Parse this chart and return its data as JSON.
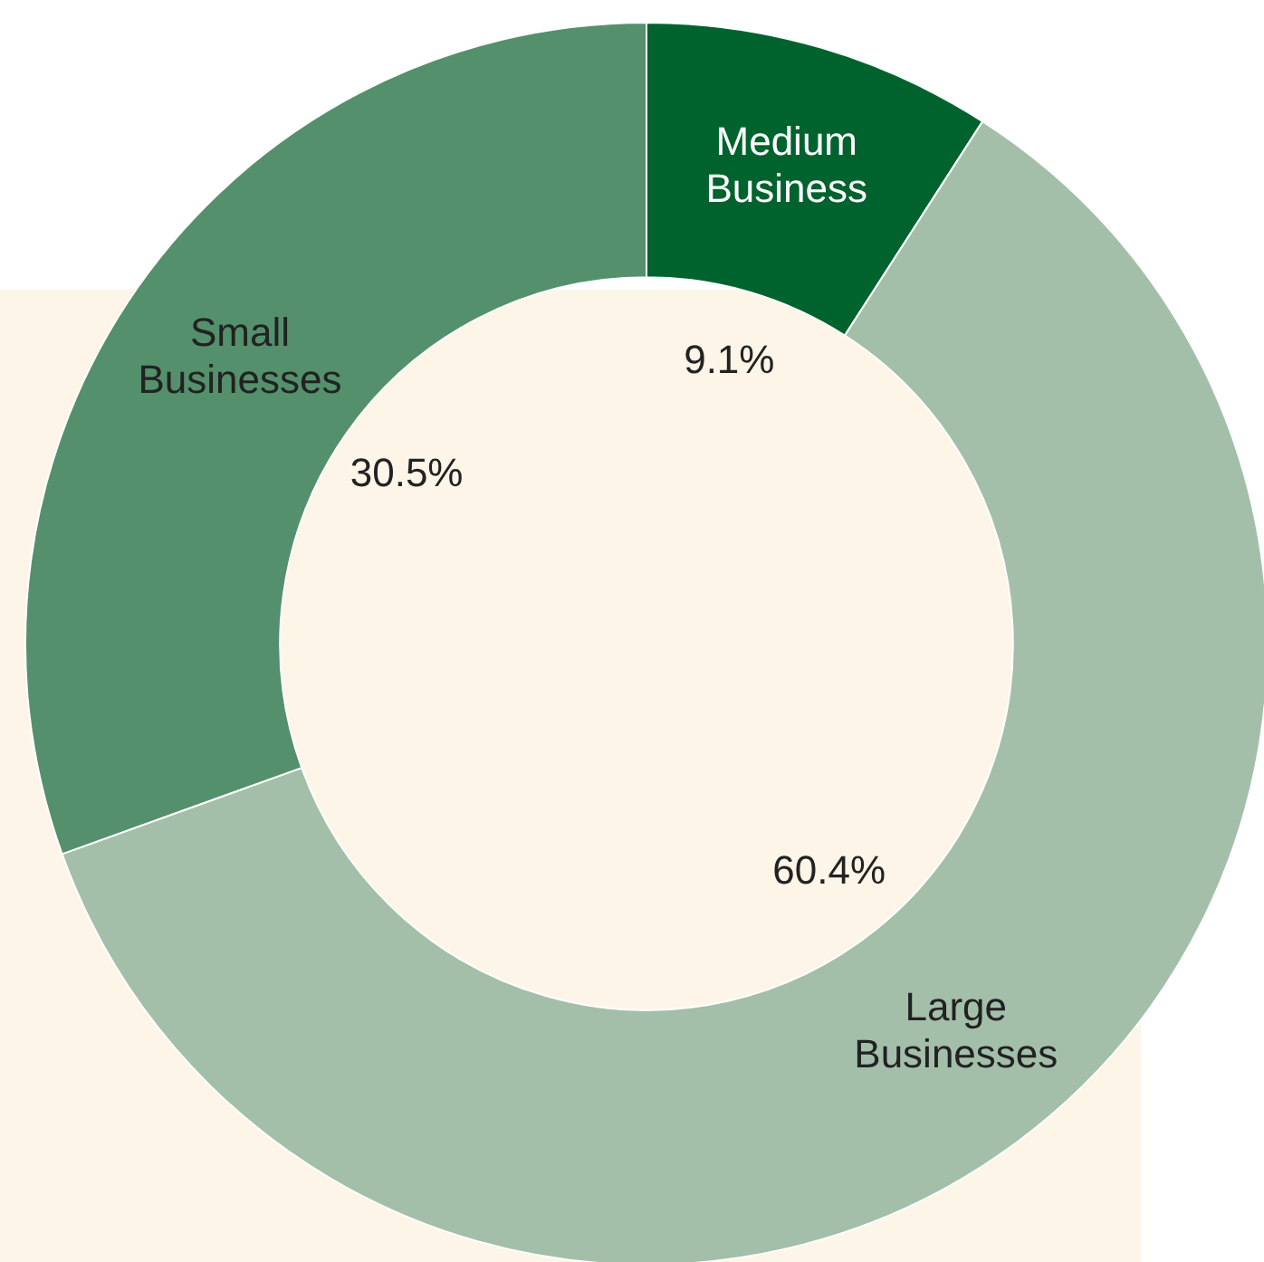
{
  "chart_data": {
    "type": "donut",
    "categories": [
      "Medium Business",
      "Large Businesses",
      "Small Businesses"
    ],
    "values": [
      9.1,
      60.4,
      30.5
    ],
    "colors": [
      "#00632e",
      "#a3bfaa",
      "#54906b"
    ],
    "value_labels": [
      "9.1%",
      "60.4%",
      "30.5%"
    ],
    "legend": false
  }
}
